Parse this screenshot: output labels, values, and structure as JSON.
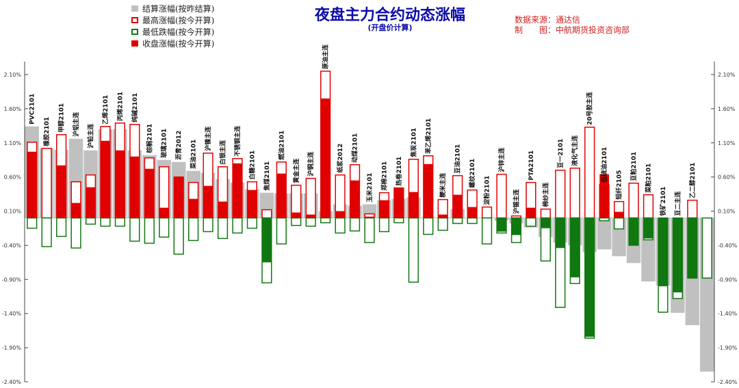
{
  "title": "夜盘主力合约动态涨幅",
  "subtitle": "(开盘价计算)",
  "source_lines": [
    "数据来源：通达信",
    "制　　图：中航期货投资咨询部"
  ],
  "legend": [
    {
      "label": "结算涨幅(按昨结算)",
      "kind": "settle",
      "color": "#c0c0c0"
    },
    {
      "label": "最高涨幅(按今开算)",
      "kind": "high",
      "color": "#e00000"
    },
    {
      "label": "最低跌幅(按今开算)",
      "kind": "low",
      "color": "#117711"
    },
    {
      "label": "收盘涨幅(按今开算)",
      "kind": "close",
      "color": "#e00000"
    }
  ],
  "chart_data": {
    "type": "bar",
    "ylim": [
      -2.4,
      2.1
    ],
    "yticks": [
      "2.10%",
      "1.60%",
      "1.10%",
      "0.60%",
      "0.10%",
      "-0.40%",
      "-0.90%",
      "-1.40%",
      "-1.90%",
      "-2.40%"
    ],
    "ytick_values": [
      2.1,
      1.6,
      1.1,
      0.6,
      0.1,
      -0.4,
      -0.9,
      -1.4,
      -1.9,
      -2.4
    ],
    "series": [
      {
        "name": "结算涨幅(按昨结算)",
        "values": [
          1.34,
          1.02,
          1.0,
          1.16,
          0.99,
          1.3,
          1.3,
          0.99,
          0.92,
          0.85,
          0.82,
          0.69,
          0.66,
          0.57,
          0.52,
          0.42,
          0.37,
          0.36,
          0.36,
          0.36,
          0.1,
          0.2,
          0.18,
          0.2,
          0.26,
          0.28,
          0.3,
          0.0,
          0.0,
          0.13,
          0.0,
          0.0,
          -0.04,
          -0.08,
          -0.14,
          -0.28,
          -0.36,
          -0.4,
          -0.5,
          -0.46,
          -0.56,
          -0.66,
          -0.93,
          -0.99,
          -1.39,
          -1.57,
          -2.25
        ]
      },
      {
        "name": "最高涨幅(按今开算)",
        "values": [
          1.11,
          1.02,
          1.22,
          0.53,
          0.63,
          1.34,
          1.39,
          1.37,
          0.88,
          0.75,
          0.6,
          0.52,
          0.95,
          0.75,
          0.87,
          0.53,
          0.12,
          0.82,
          0.48,
          0.58,
          2.15,
          0.63,
          0.78,
          0.06,
          0.37,
          0.44,
          0.86,
          0.91,
          0.27,
          0.62,
          0.41,
          0.16,
          0.64,
          0.03,
          0.52,
          0.13,
          0.7,
          0.73,
          1.33,
          0.49,
          0.24,
          0.51,
          0.34,
          0.0,
          0.0,
          0.26,
          0.0
        ]
      },
      {
        "name": "最低跌幅(按今开算)",
        "values": [
          -0.15,
          -0.42,
          -0.27,
          -0.44,
          -0.09,
          -0.12,
          -0.12,
          -0.34,
          -0.37,
          -0.28,
          -0.53,
          -0.33,
          -0.2,
          -0.3,
          -0.22,
          -0.15,
          -0.95,
          -0.38,
          -0.11,
          -0.12,
          -0.07,
          -0.22,
          -0.19,
          -0.36,
          -0.2,
          -0.07,
          -0.94,
          -0.24,
          -0.18,
          -0.08,
          -0.08,
          -0.38,
          -0.22,
          -0.36,
          -0.12,
          -0.63,
          -1.31,
          -0.96,
          -1.76,
          -0.04,
          -0.16,
          -0.4,
          -0.32,
          -1.38,
          -1.18,
          -0.88,
          -0.88
        ]
      },
      {
        "name": "收盘涨幅(按今开算)",
        "values": [
          0.97,
          0.0,
          0.77,
          0.22,
          0.45,
          1.13,
          0.99,
          0.9,
          0.72,
          0.15,
          0.6,
          0.28,
          0.47,
          0.24,
          0.8,
          0.41,
          -0.65,
          0.65,
          0.08,
          0.05,
          1.75,
          0.1,
          0.55,
          0.02,
          0.26,
          0.44,
          0.38,
          0.79,
          0.05,
          0.34,
          0.16,
          0.0,
          -0.2,
          -0.25,
          0.15,
          -0.15,
          -0.44,
          -0.87,
          -1.74,
          0.64,
          0.09,
          -0.4,
          -0.3,
          -1.0,
          -1.09,
          -0.88,
          0.0
        ]
      }
    ],
    "categories": [
      "PVC2101",
      "橡胶2101",
      "甲醇2101",
      "沪铝主连",
      "沪铅主连",
      "乙烯2101",
      "丙烯2101",
      "纯碱2101",
      "棕榈2101",
      "玻璃2101",
      "沥青2012",
      "菜油2101",
      "沪镍主连",
      "白银主连",
      "不锈钢主连",
      "白糖2101",
      "焦煤2101",
      "燃油2101",
      "黄金主连",
      "沪铜主连",
      "原油主连",
      "纸浆2012",
      "动煤2101",
      "玉米2101",
      "郑棉2101",
      "热卷2101",
      "焦炭2101",
      "苯乙烯2101",
      "粳米主连",
      "豆油2101",
      "螺纹2101",
      "淀粉2101",
      "沪锌主连",
      "沪锡主连",
      "PTA2101",
      "棉纱主连",
      "豆一2101",
      "液化气主连",
      "20号胶主连",
      "低硫油2101",
      "短纤2105",
      "豆粕2101",
      "菜粕2101",
      "铁矿2101",
      "豆二主连",
      "乙二醇2101",
      ""
    ],
    "grid": false,
    "legend_position": "top-left"
  },
  "category_labels": [
    "PVC2101",
    "橡胶2101",
    "甲醇2101",
    "沪铝主连",
    "沪铅主连",
    "乙烯2101",
    "丙烯2101",
    "纯碱2101",
    "棕榈2101",
    "玻璃2101",
    "沥青2012",
    "菜油2101",
    "沪镍主连",
    "白银主连",
    "不锈钢主连",
    "白糖2101",
    "焦煤2101",
    "燃油2101",
    "黄金主连",
    "沪铜主连",
    "原油主连",
    "纸浆2012",
    "动煤2101",
    "玉米2101",
    "郑棉2101",
    "热卷2101",
    "焦炭2101",
    "苯乙烯2101",
    "粳米主连",
    "豆油2101",
    "螺纹2101",
    "淀粉2101",
    "沪锌主连",
    "沪锡主连",
    "PTA2101",
    "棉纱主连",
    "豆一2101",
    "液化气主连",
    "20号胶主连",
    "低硫油2101",
    "短纤2105",
    "豆粕2101",
    "菜粕2101",
    "铁矿2101",
    "豆二主连",
    "乙二醇2101",
    ""
  ]
}
